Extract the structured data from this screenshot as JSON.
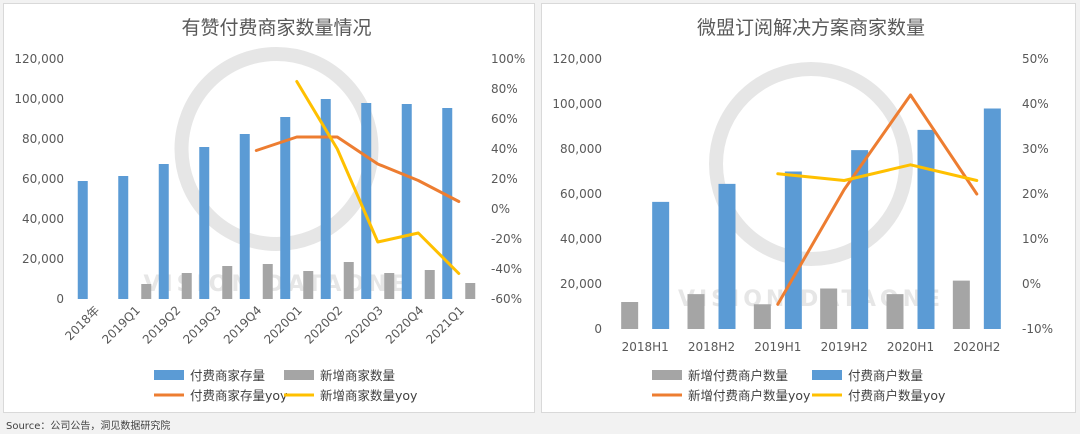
{
  "source": "Source：公司公告，洞见数据研究院",
  "watermark_text": "VISION DATAONE",
  "colors": {
    "blue": "#5b9bd5",
    "gray": "#a5a5a5",
    "orange": "#ed7d31",
    "yellow": "#ffc000",
    "axis_text": "#595959",
    "watermark": "#e6e6e6"
  },
  "chart_data": [
    {
      "type": "bar",
      "title": "有赞付费商家数量情况",
      "categories": [
        "2018年",
        "2019Q1",
        "2019Q2",
        "2019Q3",
        "2019Q4",
        "2020Q1",
        "2020Q2",
        "2020Q3",
        "2020Q4",
        "2021Q1"
      ],
      "left_axis": {
        "min": 0,
        "max": 120000,
        "ticks": [
          "0",
          "20,000",
          "40,000",
          "60,000",
          "80,000",
          "100,000",
          "120,000"
        ]
      },
      "right_axis": {
        "min": -60,
        "max": 100,
        "ticks": [
          "-60%",
          "-40%",
          "-20%",
          "0%",
          "20%",
          "40%",
          "60%",
          "80%",
          "100%"
        ]
      },
      "series": [
        {
          "name": "付费商家存量",
          "kind": "bar",
          "axis": "left",
          "color": "#5b9bd5",
          "values": [
            59000,
            61500,
            67500,
            76000,
            82500,
            91000,
            100000,
            98000,
            97500,
            95500
          ]
        },
        {
          "name": "新增商家数量",
          "kind": "bar",
          "axis": "left",
          "color": "#a5a5a5",
          "values": [
            null,
            7500,
            13000,
            16500,
            17500,
            14000,
            18500,
            13000,
            14500,
            8000
          ]
        },
        {
          "name": "付费商家存量yoy",
          "kind": "line",
          "axis": "right",
          "color": "#ed7d31",
          "values": [
            null,
            null,
            null,
            null,
            39,
            48,
            48,
            30,
            19,
            5
          ]
        },
        {
          "name": "新增商家数量yoy",
          "kind": "line",
          "axis": "right",
          "color": "#ffc000",
          "values": [
            null,
            null,
            null,
            null,
            null,
            85,
            40,
            -22,
            -16,
            -43
          ]
        }
      ],
      "legend": {
        "placement": "bottom",
        "order": [
          "付费商家存量",
          "新增商家数量",
          "付费商家存量yoy",
          "新增商家数量yoy"
        ]
      },
      "grid": false
    },
    {
      "type": "bar",
      "title": "微盟订阅解决方案商家数量",
      "categories": [
        "2018H1",
        "2018H2",
        "2019H1",
        "2019H2",
        "2020H1",
        "2020H2"
      ],
      "left_axis": {
        "min": 0,
        "max": 120000,
        "ticks": [
          "0",
          "20,000",
          "40,000",
          "60,000",
          "80,000",
          "100,000",
          "120,000"
        ]
      },
      "right_axis": {
        "min": -10,
        "max": 50,
        "ticks": [
          "-10%",
          "0%",
          "10%",
          "20%",
          "30%",
          "40%",
          "50%"
        ]
      },
      "series": [
        {
          "name": "新增付费商户数量",
          "kind": "bar",
          "axis": "left",
          "color": "#a5a5a5",
          "values": [
            12000,
            15500,
            11000,
            18000,
            15500,
            21500
          ]
        },
        {
          "name": "付费商户数量",
          "kind": "bar",
          "axis": "left",
          "color": "#5b9bd5",
          "values": [
            56500,
            64500,
            70000,
            79500,
            88500,
            98000
          ]
        },
        {
          "name": "新增付费商户数量yoy",
          "kind": "line",
          "axis": "right",
          "color": "#ed7d31",
          "values": [
            null,
            null,
            -4.5,
            21,
            42,
            20
          ]
        },
        {
          "name": "付费商户数量yoy",
          "kind": "line",
          "axis": "right",
          "color": "#ffc000",
          "values": [
            null,
            null,
            24.5,
            23,
            26.5,
            23
          ]
        }
      ],
      "legend": {
        "placement": "bottom",
        "order": [
          "新增付费商户数量",
          "付费商户数量",
          "新增付费商户数量yoy",
          "付费商户数量yoy"
        ]
      },
      "grid": false
    }
  ]
}
